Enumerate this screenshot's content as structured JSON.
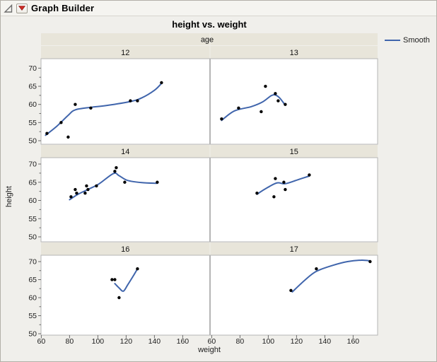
{
  "header": {
    "title": "Graph Builder",
    "disclosure_icon": "open-triangle-expanded",
    "menu_icon": "red-triangle-menu"
  },
  "chart_data": {
    "type": "scatter",
    "title": "height vs. weight",
    "xlabel": "weight",
    "ylabel": "height",
    "facet_label": "age",
    "facet_layout": "2 columns x 3 rows",
    "x_ticks": [
      60,
      80,
      100,
      120,
      140,
      160
    ],
    "y_ticks": [
      50,
      55,
      60,
      65,
      70
    ],
    "xlim": [
      59.8,
      178.5
    ],
    "ylim": [
      48.8,
      72.5
    ],
    "grid": false,
    "legend": {
      "label": "Smooth",
      "position": "top-right",
      "color": "#4065ac"
    },
    "point_color": "#000000",
    "panels": [
      {
        "age": "12",
        "points": [
          [
            64,
            52
          ],
          [
            74,
            55
          ],
          [
            79,
            51
          ],
          [
            84,
            60
          ],
          [
            95,
            59
          ],
          [
            123,
            61
          ],
          [
            128,
            61
          ],
          [
            145,
            66
          ]
        ],
        "smooth": [
          [
            63,
            51.5
          ],
          [
            71,
            54
          ],
          [
            79,
            57
          ],
          [
            84,
            58.5
          ],
          [
            95,
            59.2
          ],
          [
            106,
            59.7
          ],
          [
            123,
            60.8
          ],
          [
            131,
            61.8
          ],
          [
            140,
            63.9
          ],
          [
            145,
            65.8
          ]
        ]
      },
      {
        "age": "13",
        "points": [
          [
            67,
            56
          ],
          [
            79,
            59
          ],
          [
            95,
            58
          ],
          [
            98,
            65
          ],
          [
            105,
            63
          ],
          [
            107,
            61
          ],
          [
            112,
            60
          ]
        ],
        "smooth": [
          [
            67,
            55.6
          ],
          [
            76,
            58.2
          ],
          [
            88,
            59.4
          ],
          [
            96,
            60.7
          ],
          [
            102,
            62.4
          ],
          [
            105,
            62.6
          ],
          [
            108,
            61.8
          ],
          [
            112,
            59.8
          ]
        ]
      },
      {
        "age": "14",
        "points": [
          [
            81,
            61
          ],
          [
            84,
            63
          ],
          [
            85,
            62
          ],
          [
            91,
            62
          ],
          [
            92,
            64
          ],
          [
            93,
            63
          ],
          [
            99,
            64
          ],
          [
            112,
            68
          ],
          [
            113,
            69
          ],
          [
            119,
            65
          ],
          [
            142,
            65
          ]
        ],
        "smooth": [
          [
            80,
            60.2
          ],
          [
            86,
            61.7
          ],
          [
            94,
            63.2
          ],
          [
            101,
            64.6
          ],
          [
            111,
            67.4
          ],
          [
            115,
            66.8
          ],
          [
            121,
            65.5
          ],
          [
            131,
            64.9
          ],
          [
            142,
            64.7
          ]
        ]
      },
      {
        "age": "15",
        "points": [
          [
            92,
            62
          ],
          [
            104,
            61
          ],
          [
            105,
            66
          ],
          [
            111,
            65
          ],
          [
            112,
            63
          ],
          [
            129,
            67
          ]
        ],
        "smooth": [
          [
            92,
            61.7
          ],
          [
            98,
            63.2
          ],
          [
            106,
            64.8
          ],
          [
            112,
            64.6
          ],
          [
            121,
            65.7
          ],
          [
            129,
            66.7
          ]
        ]
      },
      {
        "age": "16",
        "points": [
          [
            110,
            65
          ],
          [
            112,
            65
          ],
          [
            115,
            60
          ],
          [
            128,
            68
          ]
        ],
        "smooth": [
          [
            112,
            63.9
          ],
          [
            115,
            62.7
          ],
          [
            118,
            61.8
          ],
          [
            121,
            63.5
          ],
          [
            125,
            66
          ],
          [
            128,
            68
          ]
        ]
      },
      {
        "age": "17",
        "points": [
          [
            116,
            62
          ],
          [
            134,
            68
          ],
          [
            172,
            70
          ]
        ],
        "smooth": [
          [
            117,
            61.6
          ],
          [
            126,
            64.9
          ],
          [
            134,
            67.3
          ],
          [
            146,
            69
          ],
          [
            156,
            70
          ],
          [
            166,
            70.4
          ],
          [
            172,
            70.2
          ]
        ]
      }
    ]
  },
  "colors": {
    "window_bg": "#f0efeb",
    "strip_bg": "#e8e5da",
    "plot_bg": "#ffffff",
    "plot_border": "#b5b5b5",
    "tick": "#6b6b6b",
    "smooth_line": "#4065ac",
    "red_triangle": "#cc2a24"
  }
}
